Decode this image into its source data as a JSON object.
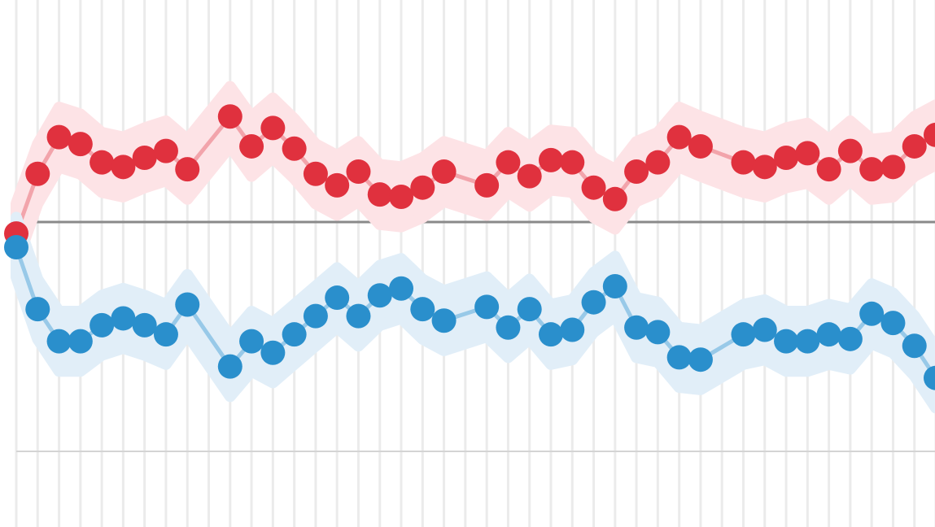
{
  "chart_data": {
    "type": "line",
    "xlim": [
      0,
      43
    ],
    "ylim": [
      -10,
      10
    ],
    "xticks": [
      0,
      1,
      2,
      3,
      4,
      5,
      6,
      7,
      8,
      9,
      10,
      11,
      12,
      13,
      14,
      15,
      16,
      17,
      18,
      19,
      20,
      21,
      22,
      23,
      24,
      25,
      26,
      27,
      28,
      29,
      30,
      31,
      32,
      33,
      34,
      35,
      36,
      37,
      38,
      39,
      40,
      41,
      42,
      43
    ],
    "yticks": [
      -10,
      0
    ],
    "grid": true,
    "series": [
      {
        "color": "#e0313e",
        "band_color": "#fde3e6",
        "line_color": "#f2a4ab",
        "band": 1.3,
        "x": [
          0,
          1,
          2,
          3,
          4,
          5,
          6,
          7,
          8,
          10,
          11,
          12,
          13,
          14,
          15,
          16,
          17,
          18,
          19,
          20,
          22,
          23,
          24,
          25,
          26,
          27,
          28,
          29,
          30,
          31,
          32,
          34,
          35,
          36,
          37,
          38,
          39,
          40,
          41,
          42,
          43
        ],
        "values": [
          -0.5,
          2.1,
          3.7,
          3.4,
          2.6,
          2.4,
          2.8,
          3.1,
          2.3,
          4.6,
          3.3,
          4.1,
          3.2,
          2.1,
          1.6,
          2.2,
          1.2,
          1.1,
          1.5,
          2.2,
          1.6,
          2.6,
          2.0,
          2.7,
          2.6,
          1.5,
          1.0,
          2.2,
          2.6,
          3.7,
          3.3,
          2.6,
          2.4,
          2.8,
          3.0,
          2.3,
          3.1,
          2.3,
          2.4,
          3.3,
          3.8
        ]
      },
      {
        "color": "#2a8fcc",
        "band_color": "#e1eef8",
        "line_color": "#98c9e8",
        "band": 1.3,
        "x": [
          0,
          1,
          2,
          3,
          4,
          5,
          6,
          7,
          8,
          10,
          11,
          12,
          13,
          14,
          15,
          16,
          17,
          18,
          19,
          20,
          22,
          23,
          24,
          25,
          26,
          27,
          28,
          29,
          30,
          31,
          32,
          34,
          35,
          36,
          37,
          38,
          39,
          40,
          41,
          42,
          43
        ],
        "values": [
          -1.1,
          -3.8,
          -5.2,
          -5.2,
          -4.5,
          -4.2,
          -4.5,
          -4.9,
          -3.6,
          -6.3,
          -5.2,
          -5.7,
          -4.9,
          -4.1,
          -3.3,
          -4.1,
          -3.2,
          -2.9,
          -3.8,
          -4.3,
          -3.7,
          -4.6,
          -3.8,
          -4.9,
          -4.7,
          -3.5,
          -2.8,
          -4.6,
          -4.8,
          -5.9,
          -6.0,
          -4.9,
          -4.7,
          -5.2,
          -5.2,
          -4.9,
          -5.1,
          -4.0,
          -4.4,
          -5.4,
          -6.8
        ]
      }
    ]
  }
}
